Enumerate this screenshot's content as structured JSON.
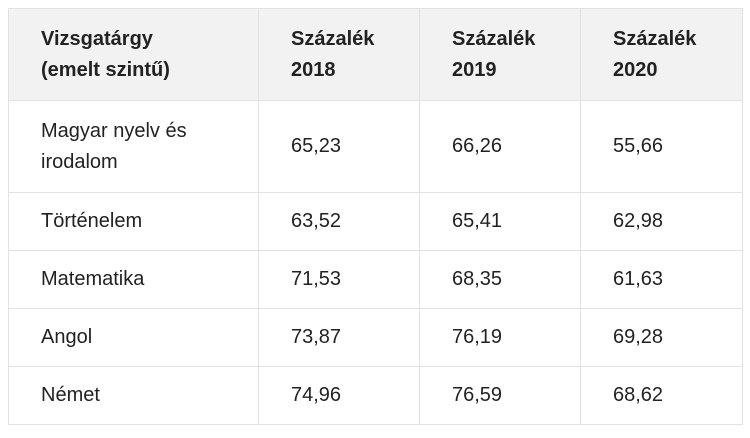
{
  "table": {
    "headers": [
      {
        "line1": "Vizsgatárgy",
        "line2": "(emelt szintű)"
      },
      {
        "line1": "Százalék",
        "line2": "2018"
      },
      {
        "line1": "Százalék",
        "line2": "2019"
      },
      {
        "line1": "Százalék",
        "line2": "2020"
      }
    ],
    "rows": [
      {
        "subject_line1": "Magyar nyelv és",
        "subject_line2": "irodalom",
        "v2018": "65,23",
        "v2019": "66,26",
        "v2020": "55,66"
      },
      {
        "subject_line1": "Történelem",
        "subject_line2": "",
        "v2018": "63,52",
        "v2019": "65,41",
        "v2020": "62,98"
      },
      {
        "subject_line1": "Matematika",
        "subject_line2": "",
        "v2018": "71,53",
        "v2019": "68,35",
        "v2020": "61,63"
      },
      {
        "subject_line1": "Angol",
        "subject_line2": "",
        "v2018": "73,87",
        "v2019": "76,19",
        "v2020": "69,28"
      },
      {
        "subject_line1": "Német",
        "subject_line2": "",
        "v2018": "74,96",
        "v2019": "76,59",
        "v2020": "68,62"
      }
    ]
  },
  "colors": {
    "header_bg": "#f2f2f2",
    "border": "#e2e2e2",
    "text": "#222222"
  }
}
